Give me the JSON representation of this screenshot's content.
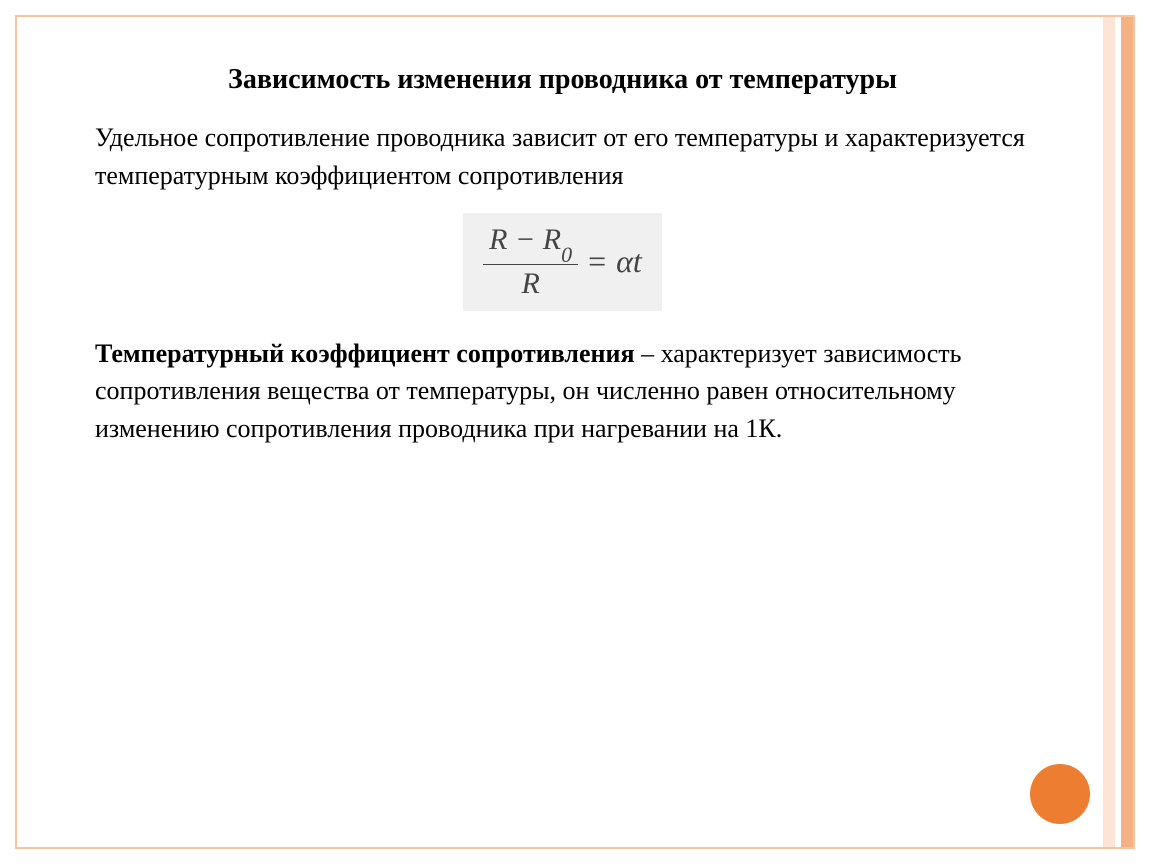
{
  "slide": {
    "title": "Зависимость изменения проводника от температуры",
    "intro": "Удельное сопротивление проводника зависит от его температуры и характеризуется температурным коэффициентом сопротивления",
    "formula": {
      "numerator_left": "R",
      "numerator_minus": " − ",
      "numerator_right": "R",
      "numerator_sub": "0",
      "denominator": "R",
      "equals": "=",
      "rhs": "αt"
    },
    "term_label": "Температурный коэффициент сопротивления",
    "term_dash": " – ",
    "definition": "характеризует зависимость сопротивления вещества от температуры, он численно равен относительному изменению сопротивления проводника при нагревании на 1К."
  },
  "style": {
    "frame_border_color": "#f8c4a0",
    "bar_light_color": "#fce5d6",
    "bar_dark_color": "#f4b183",
    "circle_color": "#ed7d31",
    "formula_bg": "#f0f0f0",
    "text_color": "#000000",
    "formula_text_color": "#444444",
    "title_fontsize": 28,
    "body_fontsize": 26,
    "formula_fontsize": 32
  }
}
